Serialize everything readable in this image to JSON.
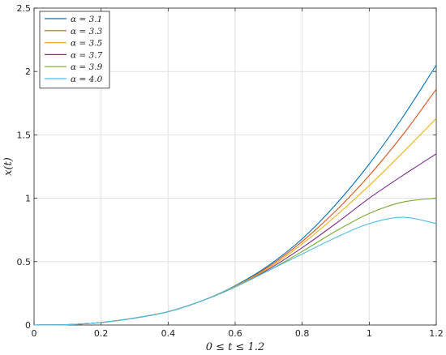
{
  "chart_data": {
    "type": "line",
    "xlabel": "0 ≤ t ≤ 1.2",
    "ylabel": "x(t)",
    "xlim": [
      0,
      1.2
    ],
    "ylim": [
      0,
      2.5
    ],
    "xticks": [
      0,
      0.2,
      0.4,
      0.6,
      0.8,
      1,
      1.2
    ],
    "xtick_labels": [
      "0",
      "0.2",
      "0.4",
      "0.6",
      "0.8",
      "1",
      "1.2"
    ],
    "yticks": [
      0,
      0.5,
      1,
      1.5,
      2,
      2.5
    ],
    "ytick_labels": [
      "0",
      "0.5",
      "1",
      "1.5",
      "2",
      "2.5"
    ],
    "grid": true,
    "legend_position": "top-left",
    "x": [
      0,
      0.1,
      0.2,
      0.3,
      0.4,
      0.5,
      0.6,
      0.7,
      0.8,
      0.9,
      1.0,
      1.1,
      1.2
    ],
    "series": [
      {
        "name": "α = 3.1",
        "color": "#0072BD",
        "values": [
          0,
          0.003,
          0.02,
          0.055,
          0.105,
          0.19,
          0.31,
          0.47,
          0.68,
          0.95,
          1.27,
          1.64,
          2.05
        ]
      },
      {
        "name": "α = 3.3",
        "color": "#D95319",
        "values": [
          0,
          0.003,
          0.02,
          0.055,
          0.105,
          0.19,
          0.305,
          0.46,
          0.66,
          0.9,
          1.18,
          1.5,
          1.86
        ]
      },
      {
        "name": "α = 3.5",
        "color": "#EDB120",
        "values": [
          0,
          0.003,
          0.02,
          0.055,
          0.105,
          0.19,
          0.305,
          0.45,
          0.64,
          0.86,
          1.1,
          1.36,
          1.63
        ]
      },
      {
        "name": "α = 3.7",
        "color": "#7E2F8E",
        "values": [
          0,
          0.003,
          0.02,
          0.055,
          0.105,
          0.19,
          0.3,
          0.44,
          0.61,
          0.8,
          1.0,
          1.18,
          1.35
        ]
      },
      {
        "name": "α = 3.9",
        "color": "#77AC30",
        "values": [
          0,
          0.003,
          0.02,
          0.055,
          0.105,
          0.19,
          0.3,
          0.43,
          0.58,
          0.74,
          0.88,
          0.97,
          1.0
        ]
      },
      {
        "name": "α = 4.0",
        "color": "#4DBEEE",
        "values": [
          0,
          0.003,
          0.02,
          0.055,
          0.105,
          0.19,
          0.3,
          0.43,
          0.56,
          0.69,
          0.8,
          0.85,
          0.8
        ]
      }
    ]
  }
}
